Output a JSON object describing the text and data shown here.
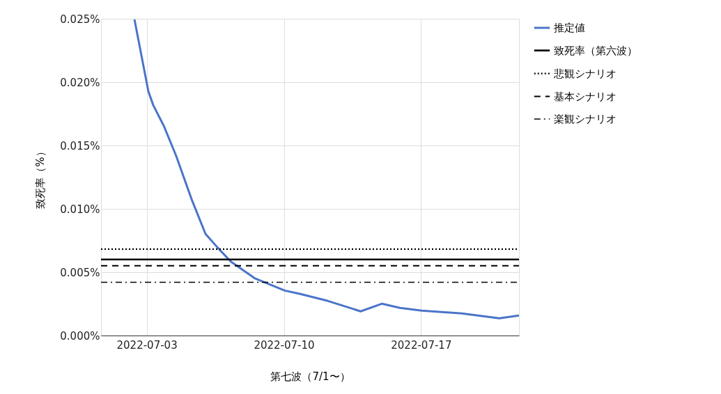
{
  "chart_data": {
    "type": "line",
    "xlabel": "第七波（7/1〜）",
    "ylabel": "致死率（%）",
    "xlim": [
      "2022-06-30T16:00",
      "2022-07-22"
    ],
    "xticks": [
      "2022-07-03",
      "2022-07-10",
      "2022-07-17"
    ],
    "ylim": [
      0,
      0.025
    ],
    "yticks": [
      {
        "value": 0,
        "label": "0.000%"
      },
      {
        "value": 0.005,
        "label": "0.005%"
      },
      {
        "value": 0.01,
        "label": "0.010%"
      },
      {
        "value": 0.015,
        "label": "0.015%"
      },
      {
        "value": 0.02,
        "label": "0.020%"
      },
      {
        "value": 0.025,
        "label": "0.025%"
      }
    ],
    "grid": true,
    "legend": "right",
    "marker": "none",
    "series": [
      {
        "name": "推定値",
        "color": "#4a74c9",
        "line_style": "solid",
        "x": [
          "2022-07-02T09:00",
          "2022-07-03T02:00",
          "2022-07-03T08:00",
          "2022-07-03T21:00",
          "2022-07-04T12:00",
          "2022-07-05T07:00",
          "2022-07-06T00:00",
          "2022-07-06T15:00",
          "2022-07-07T07:00",
          "2022-07-08T12:00",
          "2022-07-10T01:00",
          "2022-07-10T20:00",
          "2022-07-12T06:00",
          "2022-07-13T22:00",
          "2022-07-15T00:00",
          "2022-07-15T22:00",
          "2022-07-17T01:00",
          "2022-07-19T02:00",
          "2022-07-21T00:00",
          "2022-07-22T00:00"
        ],
        "values": [
          0.02495,
          0.01927,
          0.01818,
          0.01654,
          0.01419,
          0.01075,
          0.00802,
          0.00693,
          0.00584,
          0.00453,
          0.00355,
          0.00328,
          0.00273,
          0.00191,
          0.00251,
          0.00218,
          0.00197,
          0.00175,
          0.00136,
          0.00158
        ]
      },
      {
        "name": "致死率（第六波）",
        "color": "#000000",
        "line_style": "solid",
        "x": [
          "2022-06-30T16:00",
          "2022-07-22"
        ],
        "values": [
          0.006,
          0.006
        ]
      },
      {
        "name": "悲観シナリオ",
        "color": "#000000",
        "line_style": "dotted",
        "x": [
          "2022-06-30T16:00",
          "2022-07-22"
        ],
        "values": [
          0.00682,
          0.00682
        ]
      },
      {
        "name": "基本シナリオ",
        "color": "#000000",
        "line_style": "dashed",
        "x": [
          "2022-06-30T16:00",
          "2022-07-22"
        ],
        "values": [
          0.00551,
          0.00551
        ]
      },
      {
        "name": "楽観シナリオ",
        "color": "#000000",
        "line_style": "dashdot",
        "x": [
          "2022-06-30T16:00",
          "2022-07-22"
        ],
        "values": [
          0.0042,
          0.0042
        ]
      }
    ]
  }
}
